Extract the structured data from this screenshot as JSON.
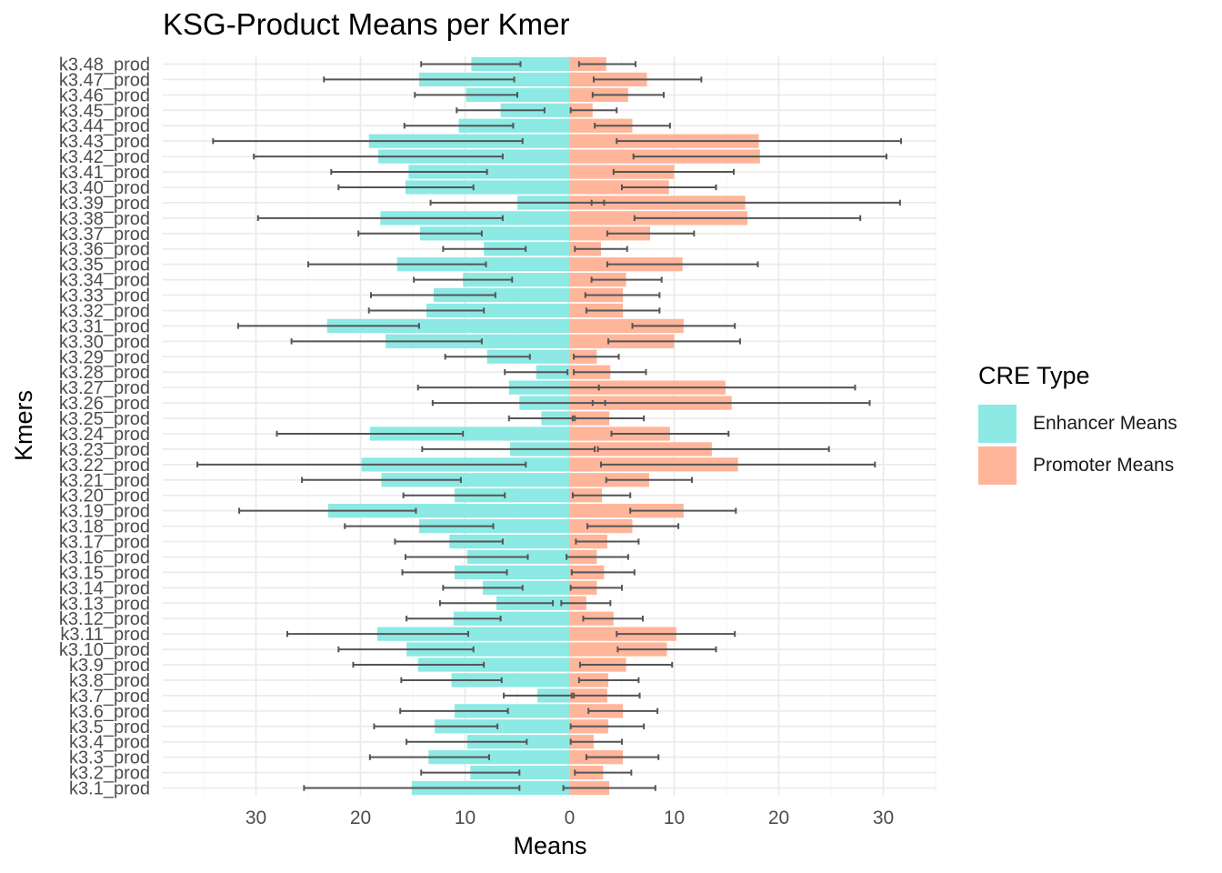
{
  "title": "KSG-Product Means per Kmer",
  "colors": {
    "enhancer": "#8de9e4",
    "promoter": "#ffb59a",
    "errorbar": "#555555",
    "grid_major": "#ebebeb",
    "grid_minor": "#f5f5f5",
    "text": "#4d4d4d"
  },
  "legend": {
    "title": "CRE Type",
    "items": [
      {
        "label": "Enhancer Means",
        "color": "#8de9e4"
      },
      {
        "label": "Promoter Means",
        "color": "#ffb59a"
      }
    ]
  },
  "chart_data": {
    "type": "bar",
    "orientation": "horizontal-diverging",
    "title": "KSG-Product Means per Kmer",
    "xlabel": "Means",
    "ylabel": "Kmers",
    "xlim": [
      -35,
      35
    ],
    "x_ticks": [
      -30,
      -20,
      -10,
      0,
      10,
      20,
      30
    ],
    "x_tick_labels": [
      "30",
      "20",
      "10",
      "0",
      "10",
      "20",
      "30"
    ],
    "grid": true,
    "legend_position": "right",
    "categories": [
      "k3.1_prod",
      "k3.2_prod",
      "k3.3_prod",
      "k3.4_prod",
      "k3.5_prod",
      "k3.6_prod",
      "k3.7_prod",
      "k3.8_prod",
      "k3.9_prod",
      "k3.10_prod",
      "k3.11_prod",
      "k3.12_prod",
      "k3.13_prod",
      "k3.14_prod",
      "k3.15_prod",
      "k3.16_prod",
      "k3.17_prod",
      "k3.18_prod",
      "k3.19_prod",
      "k3.20_prod",
      "k3.21_prod",
      "k3.22_prod",
      "k3.23_prod",
      "k3.24_prod",
      "k3.25_prod",
      "k3.26_prod",
      "k3.27_prod",
      "k3.28_prod",
      "k3.29_prod",
      "k3.30_prod",
      "k3.31_prod",
      "k3.32_prod",
      "k3.33_prod",
      "k3.34_prod",
      "k3.35_prod",
      "k3.36_prod",
      "k3.37_prod",
      "k3.38_prod",
      "k3.39_prod",
      "k3.40_prod",
      "k3.41_prod",
      "k3.42_prod",
      "k3.43_prod",
      "k3.44_prod",
      "k3.45_prod",
      "k3.46_prod",
      "k3.47_prod",
      "k3.48_prod"
    ],
    "series": [
      {
        "name": "Enhancer Means",
        "values": [
          15.1,
          9.5,
          13.5,
          9.8,
          12.9,
          11.0,
          3.1,
          11.3,
          14.5,
          15.6,
          18.4,
          11.1,
          7.0,
          8.3,
          11.0,
          9.8,
          11.5,
          14.4,
          23.1,
          11.0,
          18.0,
          19.9,
          5.7,
          19.1,
          2.7,
          4.8,
          5.8,
          3.2,
          7.9,
          17.6,
          23.2,
          13.7,
          13.0,
          10.2,
          16.5,
          8.2,
          14.3,
          18.1,
          5.0,
          15.7,
          15.4,
          18.3,
          19.2,
          10.6,
          6.6,
          9.9,
          14.4,
          9.4
        ],
        "error_low": [
          25.4,
          14.2,
          19.1,
          15.6,
          18.7,
          16.2,
          6.3,
          16.1,
          20.7,
          22.1,
          27.0,
          15.6,
          12.4,
          12.1,
          16.0,
          15.7,
          16.7,
          21.5,
          31.6,
          15.9,
          25.6,
          35.6,
          14.1,
          28.0,
          5.8,
          13.1,
          14.5,
          6.2,
          11.9,
          26.6,
          31.7,
          19.2,
          19.0,
          14.9,
          25.0,
          12.1,
          20.2,
          29.8,
          13.3,
          22.1,
          22.8,
          30.2,
          34.1,
          15.8,
          10.8,
          14.8,
          23.5,
          14.2
        ],
        "error_high": [
          4.8,
          4.8,
          7.7,
          4.1,
          6.9,
          5.9,
          -0.2,
          6.5,
          8.2,
          9.2,
          9.7,
          6.6,
          1.6,
          4.5,
          6.0,
          4.0,
          6.4,
          7.3,
          14.7,
          6.2,
          10.4,
          4.2,
          -2.4,
          10.2,
          -0.3,
          -3.4,
          -2.8,
          0.2,
          3.8,
          8.4,
          14.4,
          8.2,
          7.1,
          5.5,
          8.0,
          4.2,
          8.4,
          6.4,
          -3.3,
          9.2,
          7.9,
          6.4,
          4.5,
          5.4,
          2.4,
          5.0,
          5.3,
          4.7
        ],
        "error_values": [
          -0.5,
          -0.5,
          -0.5,
          -0.5,
          -0.5,
          -0.5,
          -0.5,
          -0.5,
          -0.5,
          -0.5,
          -0.5,
          -0.5,
          -0.5,
          -0.5,
          -0.5,
          -0.5,
          -0.5,
          -0.5,
          -0.5,
          -0.5,
          -0.5,
          -0.5,
          -0.5,
          -0.5,
          -0.5,
          -0.5,
          -0.5,
          -0.5,
          -0.5,
          -0.5,
          -0.5,
          -0.5,
          -0.5,
          -0.5,
          -0.5,
          -0.5,
          -0.5,
          -0.5,
          -0.5,
          -0.5,
          -0.5,
          -0.5,
          -0.5,
          -0.5,
          -0.5,
          -0.5,
          -0.5,
          -0.5
        ]
      },
      {
        "name": "Promoter Means",
        "values": [
          3.8,
          3.2,
          5.1,
          2.3,
          3.7,
          5.1,
          3.6,
          3.7,
          5.4,
          9.3,
          10.2,
          4.2,
          1.6,
          2.6,
          3.3,
          2.6,
          3.6,
          6.0,
          10.9,
          3.1,
          7.6,
          16.1,
          13.6,
          9.6,
          3.8,
          15.5,
          14.9,
          3.9,
          2.6,
          10.0,
          10.9,
          5.1,
          5.1,
          5.4,
          10.8,
          3.0,
          7.7,
          17.0,
          16.8,
          9.5,
          10.0,
          18.2,
          18.1,
          6.0,
          2.2,
          5.6,
          7.4,
          3.5
        ],
        "error_low": [
          -0.6,
          0.5,
          1.6,
          0.1,
          0.1,
          1.8,
          0.4,
          0.9,
          1.0,
          4.6,
          4.5,
          1.3,
          -0.8,
          0.1,
          0.2,
          -0.3,
          0.6,
          1.7,
          5.8,
          0.3,
          3.5,
          3.0,
          2.7,
          4.0,
          0.5,
          2.2,
          2.8,
          0.4,
          0.4,
          3.7,
          6.0,
          1.6,
          1.5,
          2.1,
          3.6,
          0.5,
          3.6,
          6.2,
          2.1,
          5.0,
          4.2,
          6.1,
          4.5,
          2.4,
          0.1,
          2.2,
          2.3,
          0.9
        ],
        "error_high": [
          8.2,
          5.9,
          8.5,
          5.0,
          7.1,
          8.4,
          6.7,
          6.6,
          9.8,
          14.0,
          15.8,
          7.0,
          3.9,
          5.0,
          6.2,
          5.6,
          6.6,
          10.4,
          15.9,
          5.8,
          11.7,
          29.2,
          24.8,
          15.2,
          7.1,
          28.7,
          27.3,
          7.3,
          4.7,
          16.3,
          15.8,
          8.6,
          8.6,
          8.8,
          18.0,
          5.5,
          11.9,
          27.8,
          31.6,
          14.0,
          15.7,
          30.3,
          31.7,
          9.6,
          4.5,
          9.0,
          12.6,
          6.3
        ]
      }
    ]
  }
}
